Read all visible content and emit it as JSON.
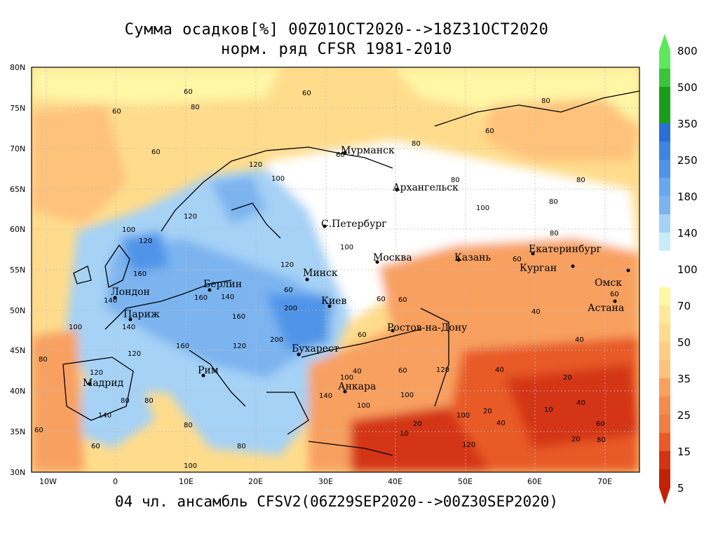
{
  "title_line1": "Сумма осадков[%] 00Z01OCT2020-->18Z31OCT2020",
  "title_line2": "норм. ряд CFSR 1981-2010",
  "footer": "04 чл. ансамбль CFSV2(06Z29SEP2020-->00Z30SEP2020)",
  "lat_labels": [
    "80N",
    "75N",
    "70N",
    "65N",
    "60N",
    "55N",
    "50N",
    "45N",
    "40N",
    "35N",
    "30N"
  ],
  "lon_labels": [
    "10W",
    "0",
    "10E",
    "20E",
    "30E",
    "40E",
    "50E",
    "60E",
    "70E"
  ],
  "colorbar": {
    "labels": [
      "800",
      "500",
      "350",
      "250",
      "180",
      "140",
      "100",
      "70",
      "50",
      "35",
      "25",
      "15",
      "5"
    ],
    "colors": [
      "#5ee85e",
      "#3cc43c",
      "#1a9e1a",
      "#2a6fd6",
      "#4f94e8",
      "#7cb4f0",
      "#a6d2f6",
      "#c8ecf8",
      "#ffffff",
      "#fff6a6",
      "#ffdc8c",
      "#ffc27a",
      "#f8a060",
      "#f07e44",
      "#e85a28",
      "#d43414",
      "#c42208"
    ]
  },
  "cities": [
    {
      "name": "Мурманск"
    },
    {
      "name": "Архангельск"
    },
    {
      "name": "С.Петербург"
    },
    {
      "name": "Москва"
    },
    {
      "name": "Казань"
    },
    {
      "name": "Екатеринбург"
    },
    {
      "name": "Курган"
    },
    {
      "name": "Омск"
    },
    {
      "name": "Астана"
    },
    {
      "name": "Минск"
    },
    {
      "name": "Киев"
    },
    {
      "name": "Берлин"
    },
    {
      "name": "Лондон"
    },
    {
      "name": "Париж"
    },
    {
      "name": "Мадрид"
    },
    {
      "name": "Рим"
    },
    {
      "name": "Бухарест"
    },
    {
      "name": "Анкара"
    },
    {
      "name": "Ростов-на-Дону"
    }
  ],
  "contour_labels": [
    "60",
    "80",
    "100",
    "120",
    "140",
    "160",
    "200",
    "40",
    "20",
    "10"
  ]
}
